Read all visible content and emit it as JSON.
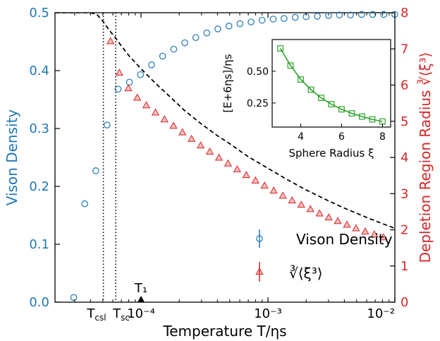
{
  "colors": {
    "blue": "#1f77b4",
    "red": "#d62728",
    "green": "#2ca02c",
    "black": "#000000"
  },
  "chart_data": [
    {
      "type": "scatter",
      "xscale": "log",
      "xlim": [
        2.1e-05,
        0.01
      ],
      "xlabel": "Temperature T/ηs",
      "ylabel": "Vison Density",
      "ylim": [
        0,
        0.5
      ],
      "y2label": "Depletion Region Radius ∛⟨ξ³⟩",
      "y2lim": [
        0,
        8
      ],
      "xticks": [
        {
          "value": 0.0001,
          "label": "10⁻⁴"
        },
        {
          "value": 0.001,
          "label": "10⁻³"
        },
        {
          "value": 0.01,
          "label": "10⁻²"
        }
      ],
      "yticks": [
        0.0,
        0.1,
        0.2,
        0.3,
        0.4,
        0.5
      ],
      "y2ticks": [
        0,
        1,
        2,
        3,
        4,
        5,
        6,
        7,
        8
      ],
      "special_xticks": [
        {
          "value": 5.05e-05,
          "label": "Tcsl"
        },
        {
          "value": 6.32e-05,
          "label": "Tsc"
        }
      ],
      "vlines": [
        5.05e-05,
        6.32e-05
      ],
      "marker_label": {
        "value": 0.0001,
        "label": "T₁"
      },
      "series": [
        {
          "name": "Vison Density",
          "marker": "circle",
          "axis": "left",
          "x": [
            2.95e-05,
            3.6e-05,
            4.4e-05,
            5.4e-05,
            6.6e-05,
            8.1e-05,
            9.9e-05,
            0.000121,
            0.000148,
            0.000181,
            0.000221,
            0.00027,
            0.00033,
            0.000403,
            0.000493,
            0.000602,
            0.000736,
            0.000899,
            0.0011,
            0.00134,
            0.00164,
            0.002,
            0.00245,
            0.003,
            0.00366,
            0.00447,
            0.00547,
            0.00668,
            0.00817,
            0.00998
          ],
          "y": [
            0.008,
            0.17,
            0.227,
            0.306,
            0.368,
            0.38,
            0.393,
            0.41,
            0.425,
            0.437,
            0.448,
            0.457,
            0.465,
            0.472,
            0.477,
            0.481,
            0.484,
            0.487,
            0.489,
            0.49,
            0.492,
            0.493,
            0.494,
            0.495,
            0.496,
            0.496,
            0.497,
            0.497,
            0.497,
            0.497
          ]
        },
        {
          "name": "∛⟨ξ³⟩",
          "marker": "triangle",
          "axis": "right",
          "x": [
            5.75e-05,
            6.75e-05,
            7.95e-05,
            9.35e-05,
            0.00011,
            0.00013,
            0.000153,
            0.00018,
            0.000212,
            0.00025,
            0.000295,
            0.000348,
            0.000411,
            0.000485,
            0.000572,
            0.000675,
            0.000797,
            0.00094,
            0.00111,
            0.00131,
            0.00155,
            0.00183,
            0.00216,
            0.00255,
            0.00301,
            0.00355,
            0.00419,
            0.00494,
            0.00584,
            0.00689,
            0.00813
          ],
          "y": [
            7.2,
            6.33,
            5.9,
            5.64,
            5.43,
            5.23,
            5.04,
            4.86,
            4.68,
            4.5,
            4.32,
            4.15,
            3.98,
            3.82,
            3.66,
            3.5,
            3.35,
            3.21,
            3.07,
            2.93,
            2.8,
            2.68,
            2.56,
            2.44,
            2.33,
            2.23,
            2.13,
            2.03,
            1.94,
            1.86,
            1.78
          ]
        }
      ],
      "dashed_curve": {
        "axis": "right",
        "x": [
          2.1e-05,
          4e-05,
          4.5e-05,
          5.05e-05,
          5.6e-05,
          6.32e-05,
          7e-05,
          8e-05,
          0.0001,
          0.00013,
          0.00017,
          0.00022,
          0.0003,
          0.0004,
          0.0005,
          0.0007,
          0.001,
          0.0014,
          0.002,
          0.003,
          0.004,
          0.006,
          0.008,
          0.01
        ],
        "y": [
          8.0,
          8.0,
          7.95,
          7.75,
          7.52,
          7.3,
          7.08,
          6.82,
          6.45,
          6.05,
          5.67,
          5.3,
          4.92,
          4.6,
          4.38,
          4.02,
          3.7,
          3.4,
          3.1,
          2.8,
          2.6,
          2.34,
          2.17,
          2.04
        ]
      },
      "legend": {
        "placement": "lower-right",
        "entries": [
          {
            "label": "Vison Density",
            "marker": "circle"
          },
          {
            "label": "∛⟨ξ³⟩",
            "marker": "triangle"
          }
        ]
      }
    },
    {
      "type": "line",
      "inset": true,
      "xlabel": "Sphere Radius ξ",
      "ylabel": "[E+6ηs]/ηs",
      "xlim": [
        2.6,
        8.4
      ],
      "ylim": [
        0.06,
        0.75
      ],
      "xticks": [
        4,
        6,
        8
      ],
      "yticks": [
        0.25,
        0.5
      ],
      "series": [
        {
          "marker": "square",
          "x": [
            3,
            3.5,
            4,
            4.5,
            5,
            5.5,
            6,
            6.5,
            7,
            7.5,
            8
          ],
          "y": [
            0.68,
            0.545,
            0.435,
            0.355,
            0.29,
            0.24,
            0.2,
            0.168,
            0.143,
            0.121,
            0.104
          ]
        }
      ]
    }
  ]
}
